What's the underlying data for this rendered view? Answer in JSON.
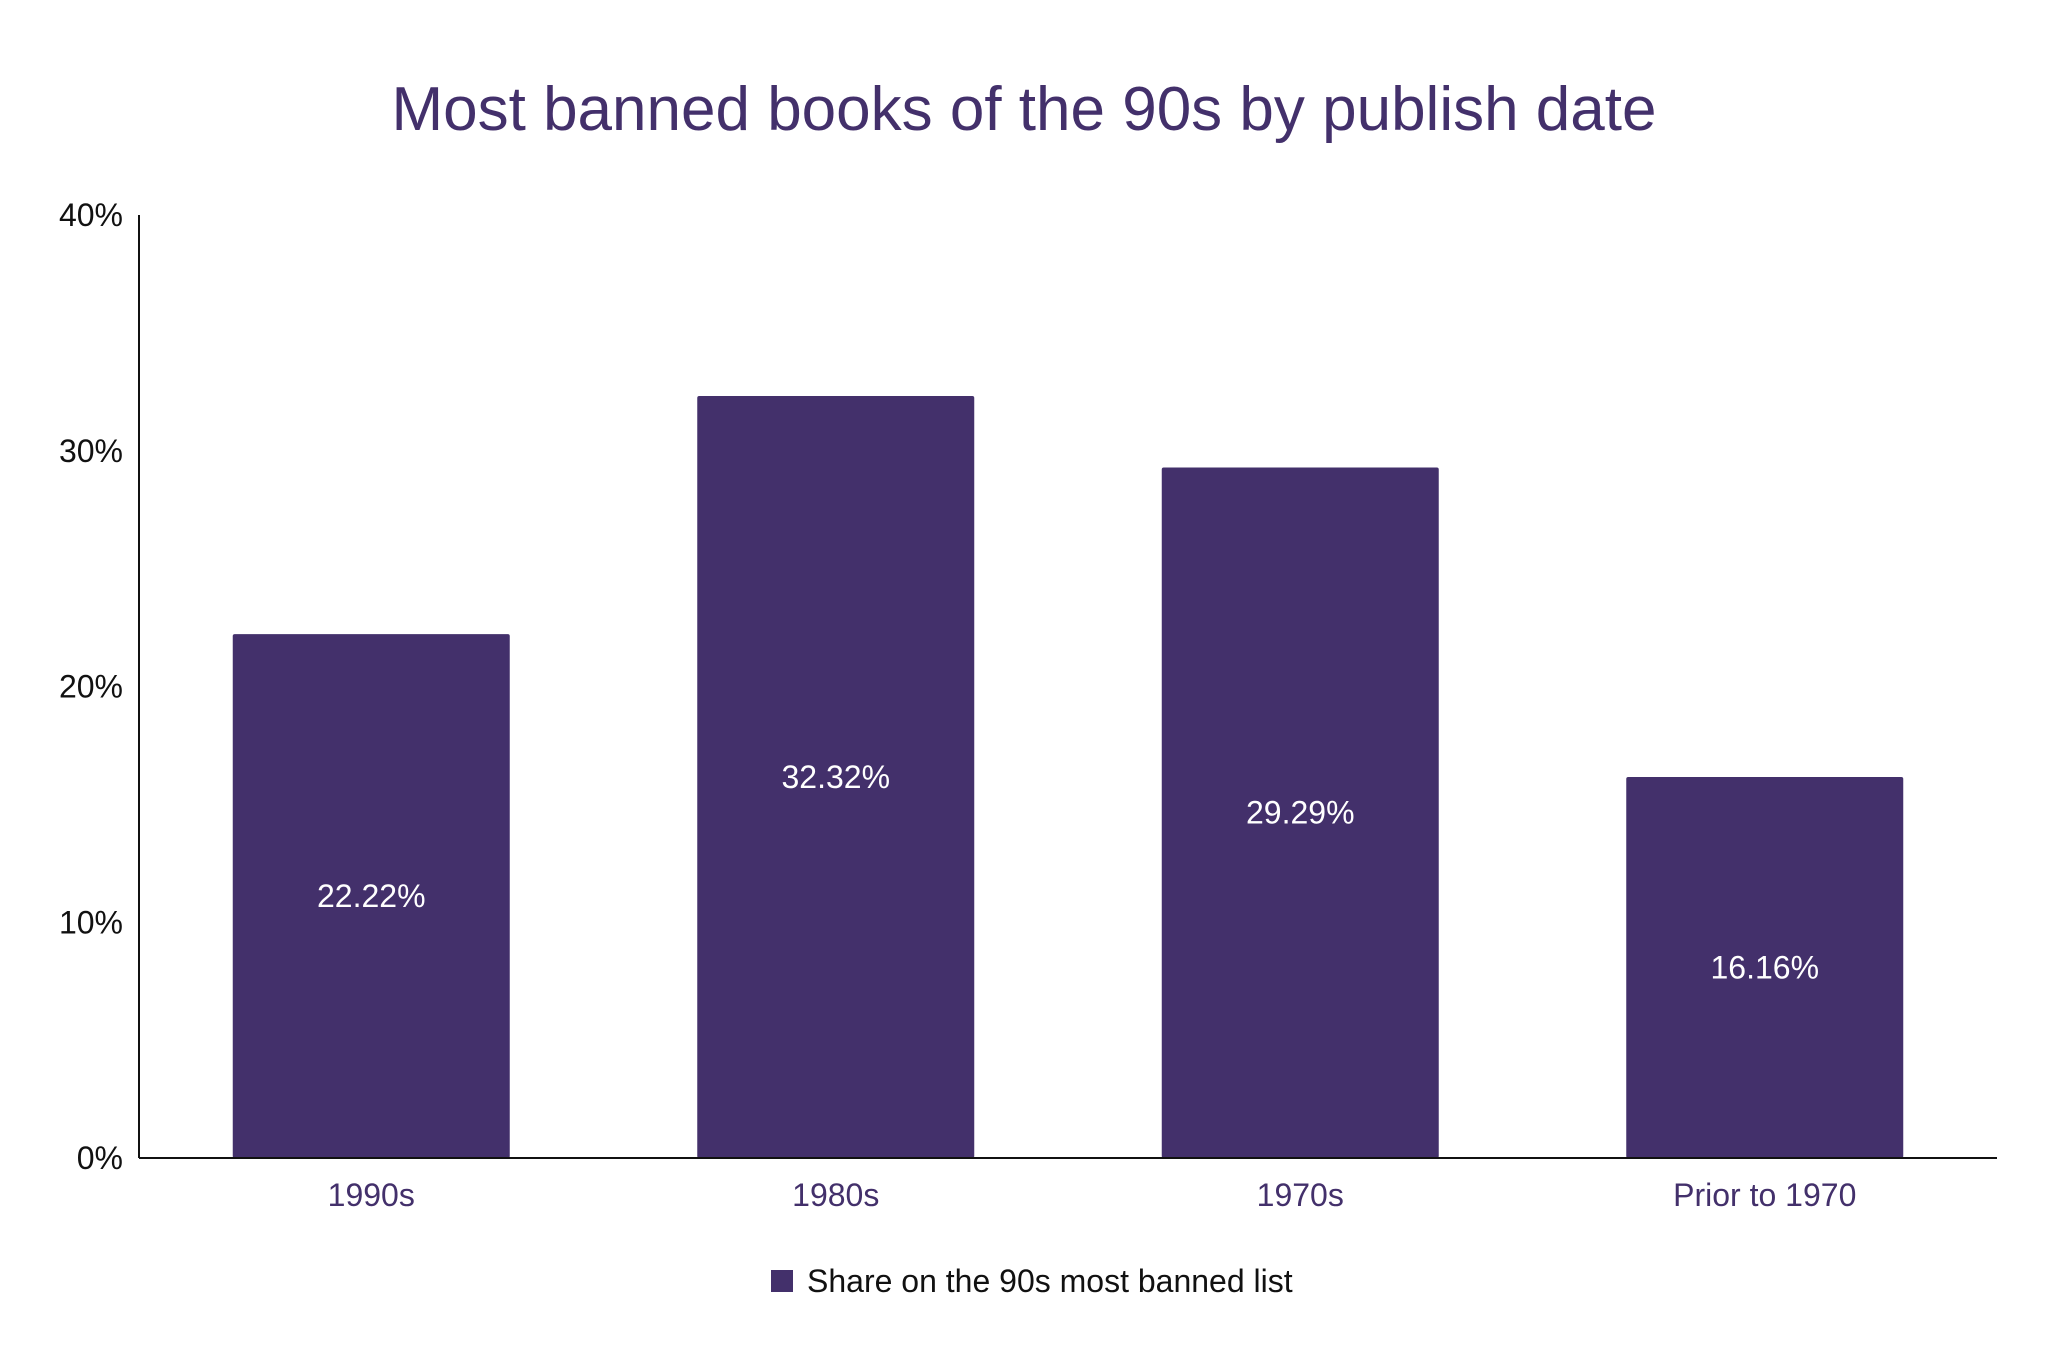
{
  "chart_data": {
    "type": "bar",
    "title": "Most banned books of the 90s by publish date",
    "categories": [
      "1990s",
      "1980s",
      "1970s",
      "Prior to 1970"
    ],
    "series": [
      {
        "name": "Share on the 90s most banned list",
        "values": [
          22.22,
          32.32,
          29.29,
          16.16
        ],
        "data_labels": [
          "22.22%",
          "32.32%",
          "29.29%",
          "16.16%"
        ],
        "color": "#43306b"
      }
    ],
    "ylim": [
      0,
      40
    ],
    "y_ticks": [
      0,
      10,
      20,
      30,
      40
    ],
    "y_tick_labels": [
      "0%",
      "10%",
      "20%",
      "30%",
      "40%"
    ],
    "xlabel": "",
    "ylabel": "",
    "grid": false,
    "legend_position": "bottom-center",
    "colors": {
      "title": "#43306b",
      "axis": "#111111",
      "bar": "#43306b",
      "data_label": "#ffffff"
    }
  }
}
